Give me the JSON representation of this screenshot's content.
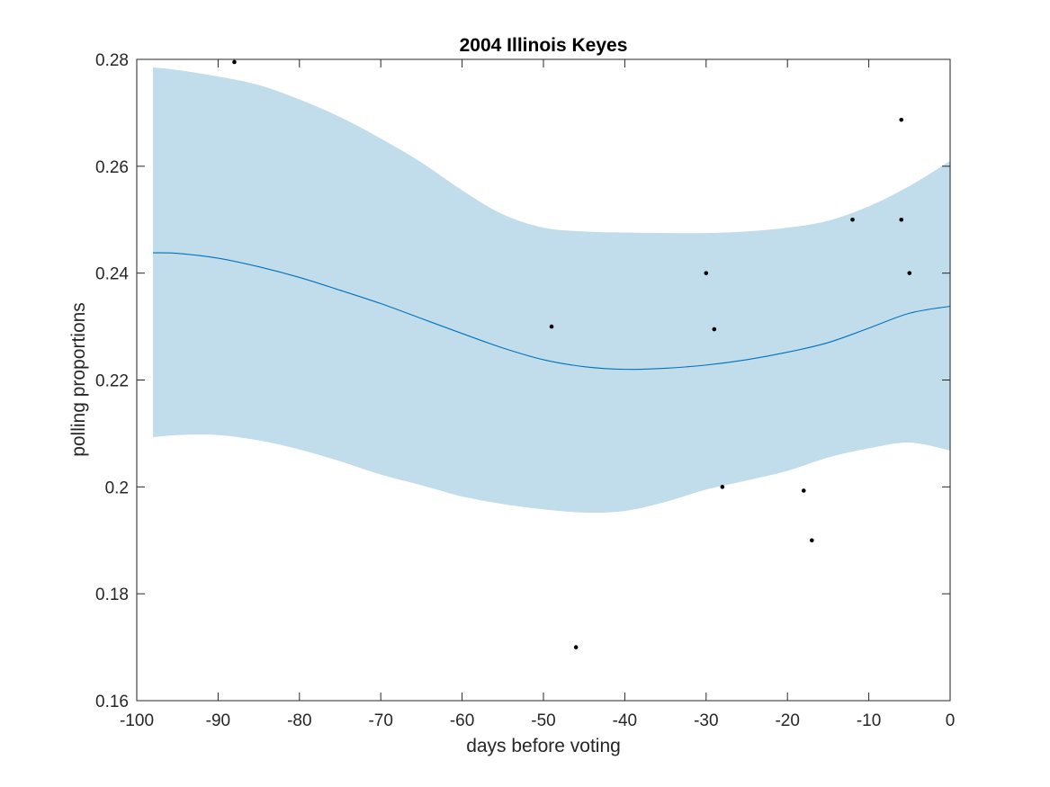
{
  "chart_data": {
    "type": "scatter",
    "title": "2004 Illinois Keyes",
    "xlabel": "days before voting",
    "ylabel": "polling proportions",
    "xlim": [
      -100,
      0
    ],
    "ylim": [
      0.16,
      0.28
    ],
    "xticks": [
      -100,
      -90,
      -80,
      -70,
      -60,
      -50,
      -40,
      -30,
      -20,
      -10,
      0
    ],
    "xtick_labels": [
      "-100",
      "-90",
      "-80",
      "-70",
      "-60",
      "-50",
      "-40",
      "-30",
      "-20",
      "-10",
      "0"
    ],
    "yticks": [
      0.16,
      0.18,
      0.2,
      0.22,
      0.24,
      0.26,
      0.28
    ],
    "ytick_labels": [
      "0.16",
      "0.18",
      "0.2",
      "0.22",
      "0.24",
      "0.26",
      "0.28"
    ],
    "grid": false,
    "legend": "none",
    "colors": {
      "band": "#c1dceb",
      "trend": "#0072bd",
      "points": "#000000",
      "axes": "#262626"
    },
    "series": [
      {
        "type": "band",
        "x": [
          -98,
          -95,
          -90,
          -85,
          -80,
          -75,
          -70,
          -65,
          -60,
          -55,
          -50,
          -45,
          -40,
          -35,
          -30,
          -25,
          -20,
          -15,
          -10,
          -5,
          0
        ],
        "lower": [
          0.2093,
          0.2097,
          0.2097,
          0.2087,
          0.207,
          0.2048,
          0.2023,
          0.2003,
          0.1982,
          0.1968,
          0.1958,
          0.1952,
          0.1955,
          0.1972,
          0.1995,
          0.2012,
          0.203,
          0.2055,
          0.2072,
          0.2083,
          0.2068
        ],
        "upper": [
          0.2785,
          0.278,
          0.2768,
          0.2752,
          0.2725,
          0.2692,
          0.2652,
          0.2607,
          0.2555,
          0.251,
          0.2485,
          0.2478,
          0.2476,
          0.2475,
          0.2475,
          0.2478,
          0.2485,
          0.2498,
          0.2525,
          0.2563,
          0.261
        ]
      },
      {
        "type": "line",
        "x": [
          -98,
          -95,
          -90,
          -85,
          -80,
          -75,
          -70,
          -65,
          -60,
          -55,
          -50,
          -45,
          -40,
          -35,
          -30,
          -25,
          -20,
          -15,
          -10,
          -5,
          0
        ],
        "y": [
          0.2438,
          0.2437,
          0.2428,
          0.2412,
          0.2392,
          0.2368,
          0.2343,
          0.2315,
          0.2287,
          0.226,
          0.2238,
          0.2225,
          0.222,
          0.2222,
          0.2228,
          0.2238,
          0.2252,
          0.227,
          0.2297,
          0.2325,
          0.2338
        ]
      },
      {
        "type": "scatter",
        "x": [
          -88,
          -49,
          -46,
          -30,
          -29,
          -28,
          -18,
          -17,
          -12,
          -6,
          -6,
          -5
        ],
        "y": [
          0.2795,
          0.23,
          0.17,
          0.24,
          0.2295,
          0.2,
          0.1993,
          0.19,
          0.25,
          0.2687,
          0.25,
          0.24
        ]
      }
    ]
  }
}
